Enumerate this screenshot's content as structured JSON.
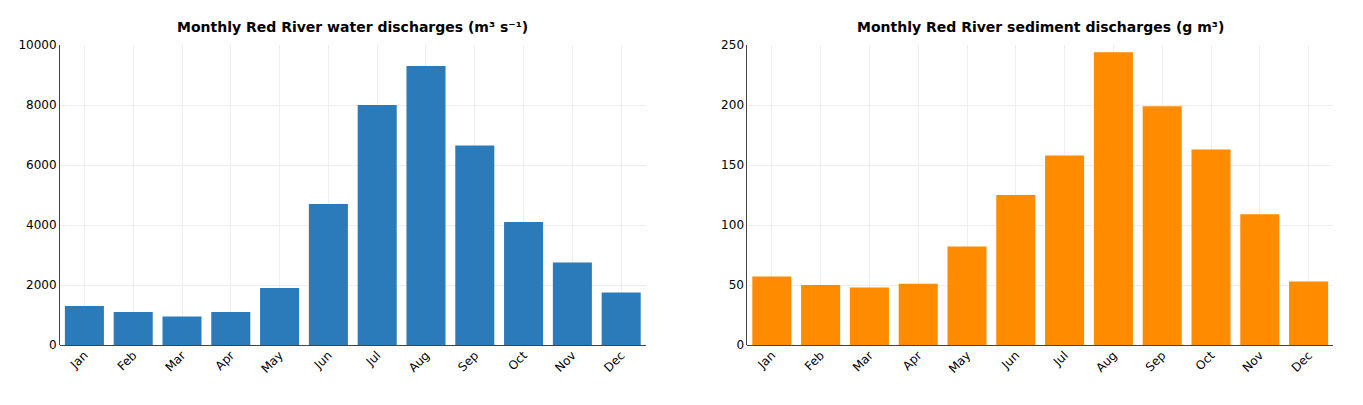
{
  "chart_data": [
    {
      "type": "bar",
      "title": "Monthly Red River water discharges (m³ s⁻¹)",
      "categories": [
        "Jan",
        "Feb",
        "Mar",
        "Apr",
        "May",
        "Jun",
        "Jul",
        "Aug",
        "Sep",
        "Oct",
        "Nov",
        "Dec"
      ],
      "values": [
        1300,
        1100,
        950,
        1100,
        1900,
        4700,
        8000,
        9300,
        6650,
        4100,
        2750,
        1750
      ],
      "color": "#2b7bba",
      "ylim": [
        0,
        10000
      ],
      "yticks": [
        0,
        2000,
        4000,
        6000,
        8000,
        10000
      ],
      "grid": true
    },
    {
      "type": "bar",
      "title": "Monthly Red River sediment discharges (g m³)",
      "categories": [
        "Jan",
        "Feb",
        "Mar",
        "Apr",
        "May",
        "Jun",
        "Jul",
        "Aug",
        "Sep",
        "Oct",
        "Nov",
        "Dec"
      ],
      "values": [
        57,
        50,
        48,
        51,
        82,
        125,
        158,
        244,
        199,
        163,
        109,
        53
      ],
      "color": "#ff8c00",
      "ylim": [
        0,
        250
      ],
      "yticks": [
        0,
        50,
        100,
        150,
        200,
        250
      ],
      "grid": true
    }
  ]
}
